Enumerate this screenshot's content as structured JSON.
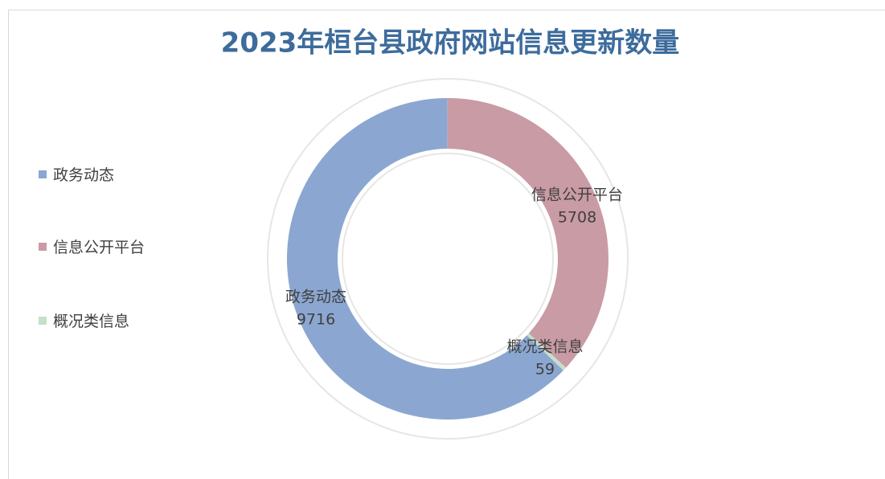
{
  "chart_data": {
    "type": "donut",
    "title": "2023年桓台县政府网站信息更新数量",
    "categories": [
      "政务动态",
      "信息公开平台",
      "概况类信息"
    ],
    "values": [
      9716,
      5708,
      59
    ],
    "colors": [
      "#8ba7d1",
      "#c99ba4",
      "#c5e0c8"
    ],
    "start_angle": 134,
    "legend": "left"
  }
}
